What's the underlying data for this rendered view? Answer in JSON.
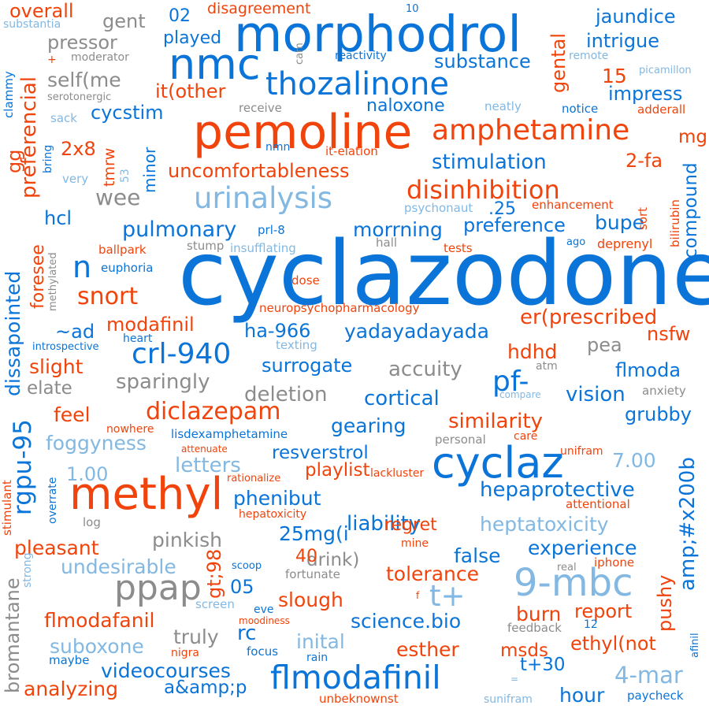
{
  "palette": {
    "blue": "#0a74d8",
    "orange": "#f0440c",
    "gray": "#8c8c8c",
    "light_blue": "#82b8e2"
  },
  "words": [
    {
      "text": "cyclazodone",
      "color": "blue"
    },
    {
      "text": "morphodrol",
      "color": "blue"
    },
    {
      "text": "pemoline",
      "color": "orange"
    },
    {
      "text": "methyl",
      "color": "orange"
    },
    {
      "text": "nmc",
      "color": "blue"
    },
    {
      "text": "cyclaz",
      "color": "blue"
    },
    {
      "text": "9-mbc",
      "color": "light_blue"
    },
    {
      "text": "thozalinone",
      "color": "blue"
    },
    {
      "text": "amphetamine",
      "color": "orange"
    },
    {
      "text": "flmodafinil",
      "color": "blue"
    },
    {
      "text": "urinalysis",
      "color": "light_blue"
    },
    {
      "text": "ppap",
      "color": "gray"
    },
    {
      "text": "disinhibition",
      "color": "orange"
    },
    {
      "text": "crl-940",
      "color": "blue"
    },
    {
      "text": "diclazepam",
      "color": "orange"
    },
    {
      "text": "rgpu-95",
      "color": "blue"
    },
    {
      "text": "snort",
      "color": "orange"
    },
    {
      "text": "pulmonary",
      "color": "blue"
    },
    {
      "text": "uncomfortableness",
      "color": "orange"
    },
    {
      "text": "stimulation",
      "color": "blue"
    },
    {
      "text": "morrning",
      "color": "blue"
    },
    {
      "text": "preference",
      "color": "blue"
    },
    {
      "text": "similarity",
      "color": "orange"
    },
    {
      "text": "hepaprotective",
      "color": "blue"
    },
    {
      "text": "heptatoxicity",
      "color": "light_blue"
    },
    {
      "text": "experience",
      "color": "blue"
    },
    {
      "text": "liability",
      "color": "blue"
    },
    {
      "text": "modafinil",
      "color": "orange"
    },
    {
      "text": "yadayadayada",
      "color": "blue"
    },
    {
      "text": "surrogate",
      "color": "blue"
    },
    {
      "text": "accuity",
      "color": "gray"
    },
    {
      "text": "cortical",
      "color": "blue"
    },
    {
      "text": "sparingly",
      "color": "gray"
    },
    {
      "text": "deletion",
      "color": "gray"
    },
    {
      "text": "er(prescribed",
      "color": "orange"
    },
    {
      "text": "flmoda",
      "color": "blue"
    },
    {
      "text": "vision",
      "color": "blue"
    },
    {
      "text": "grubby",
      "color": "blue"
    },
    {
      "text": "gearing",
      "color": "blue"
    },
    {
      "text": "resverstrol",
      "color": "blue"
    },
    {
      "text": "playlist",
      "color": "orange"
    },
    {
      "text": "phenibut",
      "color": "blue"
    },
    {
      "text": "letters",
      "color": "light_blue"
    },
    {
      "text": "foggyness",
      "color": "light_blue"
    },
    {
      "text": "feel",
      "color": "orange"
    },
    {
      "text": "slight",
      "color": "orange"
    },
    {
      "text": "elate",
      "color": "gray"
    },
    {
      "text": "pleasant",
      "color": "orange"
    },
    {
      "text": "undesirable",
      "color": "light_blue"
    },
    {
      "text": "pinkish",
      "color": "gray"
    },
    {
      "text": "25mg(i",
      "color": "blue"
    },
    {
      "text": "regret",
      "color": "orange"
    },
    {
      "text": "false",
      "color": "blue"
    },
    {
      "text": "tolerance",
      "color": "orange"
    },
    {
      "text": "drink)",
      "color": "gray"
    },
    {
      "text": "slough",
      "color": "orange"
    },
    {
      "text": "science.bio",
      "color": "blue"
    },
    {
      "text": "inital",
      "color": "light_blue"
    },
    {
      "text": "esther",
      "color": "orange"
    },
    {
      "text": "msds",
      "color": "orange"
    },
    {
      "text": "ethyl(not",
      "color": "orange"
    },
    {
      "text": "burn",
      "color": "orange"
    },
    {
      "text": "report",
      "color": "orange"
    },
    {
      "text": "truly",
      "color": "gray"
    },
    {
      "text": "rc",
      "color": "blue"
    },
    {
      "text": "suboxone",
      "color": "light_blue"
    },
    {
      "text": "videocourses",
      "color": "blue"
    },
    {
      "text": "analyzing",
      "color": "orange"
    },
    {
      "text": "a&amp;p",
      "color": "blue"
    },
    {
      "text": "4-mar",
      "color": "light_blue"
    },
    {
      "text": "hour",
      "color": "blue"
    },
    {
      "text": "t+30",
      "color": "blue"
    },
    {
      "text": "t+",
      "color": "light_blue"
    },
    {
      "text": "flmodafanil",
      "color": "orange"
    },
    {
      "text": "7.00",
      "color": "light_blue"
    },
    {
      "text": "1.00",
      "color": "light_blue"
    },
    {
      "text": "jaundice",
      "color": "blue"
    },
    {
      "text": "intrigue",
      "color": "blue"
    },
    {
      "text": "substance",
      "color": "blue"
    },
    {
      "text": "impress",
      "color": "blue"
    },
    {
      "text": "naloxone",
      "color": "blue"
    },
    {
      "text": "played",
      "color": "blue"
    },
    {
      "text": "gent",
      "color": "gray"
    },
    {
      "text": "pressor",
      "color": "gray"
    },
    {
      "text": "self(me",
      "color": "gray"
    },
    {
      "text": "it(other",
      "color": "orange"
    },
    {
      "text": "cycstim",
      "color": "blue"
    },
    {
      "text": "overall",
      "color": "orange"
    },
    {
      "text": "disagreement",
      "color": "orange"
    },
    {
      "text": "02",
      "color": "blue"
    },
    {
      "text": "15",
      "color": "orange"
    },
    {
      "text": "mg",
      "color": "orange"
    },
    {
      "text": "2-fa",
      "color": "orange"
    },
    {
      "text": "2x8",
      "color": "orange"
    },
    {
      "text": "wee",
      "color": "gray"
    },
    {
      "text": "hcl",
      "color": "blue"
    },
    {
      "text": "n",
      "color": "blue"
    },
    {
      "text": "~ad",
      "color": "blue"
    },
    {
      "text": "ha-966",
      "color": "blue"
    },
    {
      "text": "heart",
      "color": "blue"
    },
    {
      "text": "hdhd",
      "color": "orange"
    },
    {
      "text": "pea",
      "color": "gray"
    },
    {
      "text": "nsfw",
      "color": "orange"
    },
    {
      "text": "pf-",
      "color": "blue"
    },
    {
      "text": ".25",
      "color": "blue"
    },
    {
      "text": "bupe",
      "color": "blue"
    },
    {
      "text": "40",
      "color": "orange"
    },
    {
      "text": "05",
      "color": "blue"
    },
    {
      "text": "euphoria",
      "color": "blue"
    },
    {
      "text": "ballpark",
      "color": "orange"
    },
    {
      "text": "stump",
      "color": "gray"
    },
    {
      "text": "insufflating",
      "color": "light_blue"
    },
    {
      "text": "prl-8",
      "color": "blue"
    },
    {
      "text": "hall",
      "color": "gray"
    },
    {
      "text": "tests",
      "color": "orange"
    },
    {
      "text": "ago",
      "color": "blue"
    },
    {
      "text": "deprenyl",
      "color": "orange"
    },
    {
      "text": "enhancement",
      "color": "orange"
    },
    {
      "text": "psychonaut",
      "color": "light_blue"
    },
    {
      "text": "dose",
      "color": "orange"
    },
    {
      "text": "neuropsychopharmacology",
      "color": "orange"
    },
    {
      "text": "texting",
      "color": "light_blue"
    },
    {
      "text": "introspective",
      "color": "blue"
    },
    {
      "text": "atm",
      "color": "gray"
    },
    {
      "text": "anxiety",
      "color": "gray"
    },
    {
      "text": "compare",
      "color": "light_blue"
    },
    {
      "text": "lisdexamphetamine",
      "color": "blue"
    },
    {
      "text": "nowhere",
      "color": "orange"
    },
    {
      "text": "personal",
      "color": "gray"
    },
    {
      "text": "care",
      "color": "orange"
    },
    {
      "text": "unifram",
      "color": "orange"
    },
    {
      "text": "attenuate",
      "color": "orange"
    },
    {
      "text": "rationalize",
      "color": "orange"
    },
    {
      "text": "lackluster",
      "color": "orange"
    },
    {
      "text": "attentional",
      "color": "orange"
    },
    {
      "text": "hepatoxicity",
      "color": "orange"
    },
    {
      "text": "log",
      "color": "gray"
    },
    {
      "text": "mine",
      "color": "orange"
    },
    {
      "text": "scoop",
      "color": "blue"
    },
    {
      "text": "fortunate",
      "color": "gray"
    },
    {
      "text": "real",
      "color": "gray"
    },
    {
      "text": "iphone",
      "color": "orange"
    },
    {
      "text": "screen",
      "color": "light_blue"
    },
    {
      "text": "eve",
      "color": "blue"
    },
    {
      "text": "moodiness",
      "color": "orange"
    },
    {
      "text": "f",
      "color": "orange"
    },
    {
      "text": "feedback",
      "color": "gray"
    },
    {
      "text": "12",
      "color": "blue"
    },
    {
      "text": "nigra",
      "color": "orange"
    },
    {
      "text": "focus",
      "color": "blue"
    },
    {
      "text": "rain",
      "color": "blue"
    },
    {
      "text": "maybe",
      "color": "blue"
    },
    {
      "text": "=",
      "color": "light_blue"
    },
    {
      "text": "sunifram",
      "color": "light_blue"
    },
    {
      "text": "paycheck",
      "color": "blue"
    },
    {
      "text": "unbeknownst",
      "color": "orange"
    },
    {
      "text": "substantia",
      "color": "light_blue"
    },
    {
      "text": "moderator",
      "color": "gray"
    },
    {
      "text": "serotonergic",
      "color": "gray"
    },
    {
      "text": "sack",
      "color": "light_blue"
    },
    {
      "text": "very",
      "color": "light_blue"
    },
    {
      "text": "reactivity",
      "color": "blue"
    },
    {
      "text": "remote",
      "color": "light_blue"
    },
    {
      "text": "picamillon",
      "color": "light_blue"
    },
    {
      "text": "receive",
      "color": "gray"
    },
    {
      "text": "neatly",
      "color": "light_blue"
    },
    {
      "text": "notice",
      "color": "blue"
    },
    {
      "text": "adderall",
      "color": "orange"
    },
    {
      "text": "nmn",
      "color": "blue"
    },
    {
      "text": "it-elation",
      "color": "orange"
    },
    {
      "text": "10",
      "color": "blue"
    },
    {
      "text": "+",
      "color": "orange"
    },
    {
      "text": "cam",
      "color": "gray"
    },
    {
      "text": "preferencial",
      "color": "orange"
    },
    {
      "text": "clammy",
      "color": "blue"
    },
    {
      "text": "gg",
      "color": "orange"
    },
    {
      "text": "bring",
      "color": "blue"
    },
    {
      "text": "tmrw",
      "color": "orange"
    },
    {
      "text": "53",
      "color": "light_blue"
    },
    {
      "text": "minor",
      "color": "blue"
    },
    {
      "text": "foresee",
      "color": "orange"
    },
    {
      "text": "dissapointed",
      "color": "blue"
    },
    {
      "text": "methylated",
      "color": "gray"
    },
    {
      "text": "stimulant",
      "color": "orange"
    },
    {
      "text": "overrate",
      "color": "blue"
    },
    {
      "text": "strong",
      "color": "light_blue"
    },
    {
      "text": "bromantane",
      "color": "gray"
    },
    {
      "text": "gental",
      "color": "orange"
    },
    {
      "text": "compound",
      "color": "blue"
    },
    {
      "text": "sort",
      "color": "orange"
    },
    {
      "text": "bilirubin",
      "color": "orange"
    },
    {
      "text": "amp;#x200b",
      "color": "blue"
    },
    {
      "text": "pushy",
      "color": "orange"
    },
    {
      "text": "gt;98",
      "color": "orange"
    },
    {
      "text": "afinil",
      "color": "blue"
    }
  ]
}
